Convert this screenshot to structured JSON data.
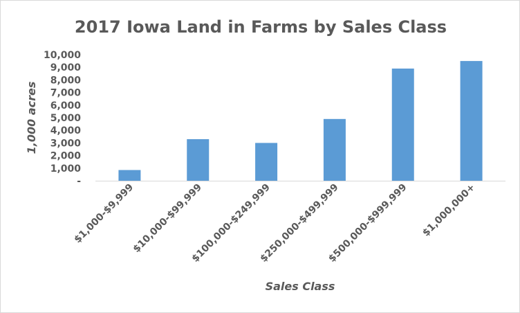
{
  "chart_data": {
    "type": "bar",
    "title": "2017 Iowa Land in Farms by Sales Class",
    "xlabel": "Sales Class",
    "ylabel": "1,000 acres",
    "categories": [
      "$1,000-$9,999",
      "$10,000-$99,999",
      "$100,000-$249,999",
      "$250,000-$499,999",
      "$500,000-$999,999",
      "$1,000,000+"
    ],
    "values": [
      850,
      3300,
      3000,
      4900,
      8900,
      9500
    ],
    "ylim": [
      0,
      10000
    ],
    "yticks": [
      0,
      1000,
      2000,
      3000,
      4000,
      5000,
      6000,
      7000,
      8000,
      9000,
      10000
    ],
    "ytick_labels": [
      "-",
      "1,000",
      "2,000",
      "3,000",
      "4,000",
      "5,000",
      "6,000",
      "7,000",
      "8,000",
      "9,000",
      "10,000"
    ],
    "grid": false,
    "legend": "none",
    "bar_color": "#5b9bd5"
  }
}
